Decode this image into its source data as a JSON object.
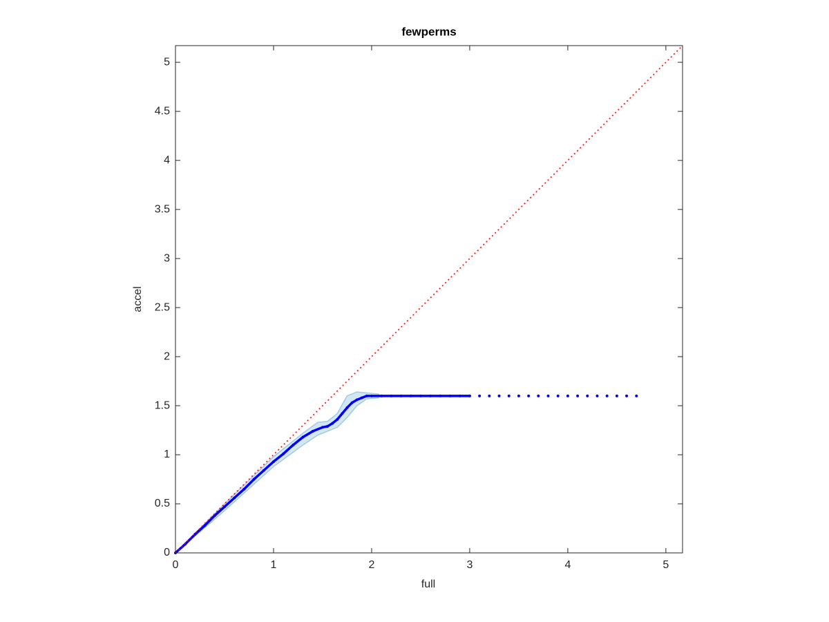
{
  "chart_data": {
    "type": "line",
    "title": "fewperms",
    "x_label": "full",
    "y_label": "accel",
    "xlim": [
      0,
      5.17
    ],
    "ylim": [
      0,
      5.17
    ],
    "xticks": [
      0,
      1,
      2,
      3,
      4,
      5
    ],
    "yticks": [
      0,
      0.5,
      1,
      1.5,
      2,
      2.5,
      3,
      3.5,
      4,
      4.5,
      5
    ],
    "band": {
      "color": "#9ecae1",
      "x": [
        0,
        0.5,
        1,
        1.3,
        1.45,
        1.55,
        1.65,
        1.75,
        1.85,
        1.95,
        2.07
      ],
      "lower": [
        0,
        0.43,
        0.88,
        1.1,
        1.2,
        1.24,
        1.28,
        1.38,
        1.5,
        1.57,
        1.58
      ],
      "upper": [
        0,
        0.5,
        0.98,
        1.22,
        1.33,
        1.34,
        1.42,
        1.6,
        1.64,
        1.63,
        1.62
      ]
    },
    "series": [
      {
        "color": "#0000ff",
        "style": "dots",
        "x": [
          0,
          0.1,
          0.2,
          0.3,
          0.4,
          0.5,
          0.6,
          0.7,
          0.8,
          0.9,
          1.0,
          1.1,
          1.2,
          1.3,
          1.4,
          1.5,
          1.55,
          1.6,
          1.65,
          1.7,
          1.75,
          1.8,
          1.85,
          1.9,
          1.95,
          2.0,
          2.1,
          2.2,
          2.3,
          2.4,
          2.5,
          2.6,
          2.7,
          2.8,
          2.9,
          3.0,
          3.1,
          3.2,
          3.3,
          3.4,
          3.5,
          3.6,
          3.7,
          3.8,
          3.9,
          4.0,
          4.1,
          4.2,
          4.3,
          4.4,
          4.5,
          4.6,
          4.7
        ],
        "values": [
          0,
          0.09,
          0.19,
          0.28,
          0.38,
          0.47,
          0.56,
          0.65,
          0.75,
          0.84,
          0.93,
          1.01,
          1.1,
          1.18,
          1.24,
          1.28,
          1.29,
          1.32,
          1.36,
          1.42,
          1.48,
          1.53,
          1.56,
          1.58,
          1.6,
          1.6,
          1.6,
          1.6,
          1.6,
          1.6,
          1.6,
          1.6,
          1.6,
          1.6,
          1.6,
          1.6,
          1.6,
          1.6,
          1.6,
          1.6,
          1.6,
          1.6,
          1.6,
          1.6,
          1.6,
          1.6,
          1.6,
          1.6,
          1.6,
          1.6,
          1.6,
          1.6,
          1.6
        ]
      },
      {
        "color": "#ff0000",
        "style": "dotted",
        "x": [
          0,
          5.17
        ],
        "values": [
          0,
          5.17
        ]
      }
    ]
  }
}
